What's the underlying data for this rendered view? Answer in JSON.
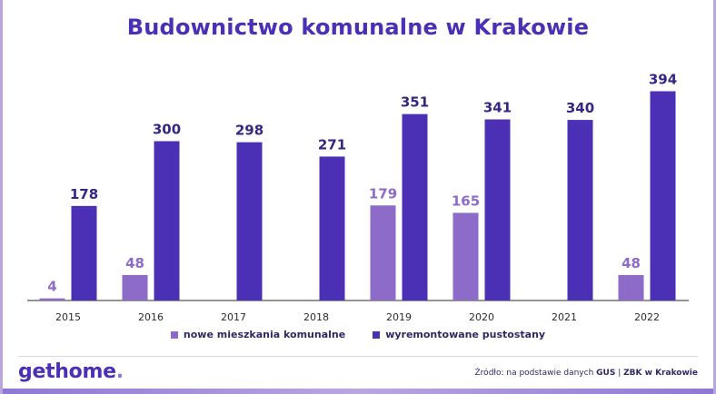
{
  "title": "Budownictwo komunalne w Krakowie",
  "colors": {
    "series1": "#8d6bc8",
    "series2": "#4b2fb4",
    "label1": "#8d6bc8",
    "label2": "#342784",
    "axis": "#2b2b2b",
    "grid": "#d7d7df"
  },
  "chart_data": {
    "type": "bar",
    "title": "Budownictwo komunalne w Krakowie",
    "categories": [
      "2015",
      "2016",
      "2017",
      "2018",
      "2019",
      "2020",
      "2021",
      "2022"
    ],
    "series": [
      {
        "name": "nowe mieszkania komunalne",
        "values": [
          4,
          48,
          null,
          null,
          179,
          165,
          null,
          48
        ]
      },
      {
        "name": "wyremontowane pustostany",
        "values": [
          178,
          300,
          298,
          271,
          351,
          341,
          340,
          394
        ]
      }
    ],
    "xlabel": "",
    "ylabel": "",
    "ylim": [
      0,
      400
    ],
    "grid": false,
    "legend_position": "bottom"
  },
  "legend": {
    "item1": "nowe mieszkania komunalne",
    "item2": "wyremontowane pustostany"
  },
  "footer": {
    "logo_main": "gethome",
    "logo_dot": ".",
    "source_prefix": "Źródło: na podstawie danych",
    "source_gus": "GUS",
    "source_sep": "|",
    "source_zbk": "ZBK w Krakowie"
  }
}
